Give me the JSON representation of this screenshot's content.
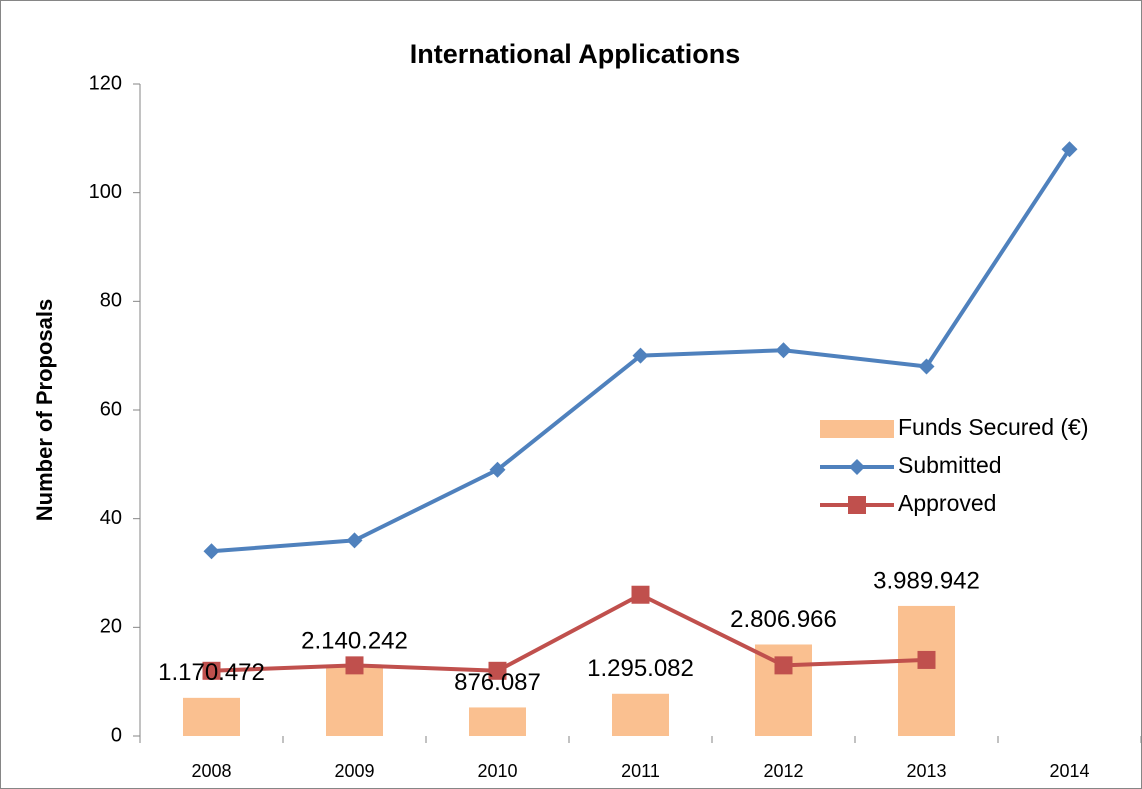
{
  "chart_data": {
    "type": "combo",
    "title": "International Applications",
    "y_label": "Number of Proposals",
    "categories": [
      "2008",
      "2009",
      "2010",
      "2011",
      "2012",
      "2013",
      "2014"
    ],
    "series": [
      {
        "name": "Funds Secured (€)",
        "type": "bar",
        "axis": "y2",
        "color": "#fac090",
        "values": [
          1170472,
          2140242,
          876087,
          1295082,
          2806966,
          3989942,
          null
        ],
        "value_labels": [
          "1.170.472",
          "2.140.242",
          "876.087",
          "1.295.082",
          "2.806.966",
          "3.989.942",
          null
        ]
      },
      {
        "name": "Submitted",
        "type": "line",
        "color": "#4f81bd",
        "marker": "diamond",
        "values": [
          34,
          36,
          49,
          70,
          71,
          68,
          108
        ]
      },
      {
        "name": "Approved",
        "type": "line",
        "color": "#c0504d",
        "marker": "square",
        "values": [
          12,
          13,
          12,
          26,
          13,
          14,
          null
        ]
      }
    ],
    "ylim": [
      0,
      120
    ],
    "yticks": [
      0,
      20,
      40,
      60,
      80,
      100,
      120
    ],
    "y2lim": [
      0,
      20000000
    ],
    "legend": "right"
  }
}
